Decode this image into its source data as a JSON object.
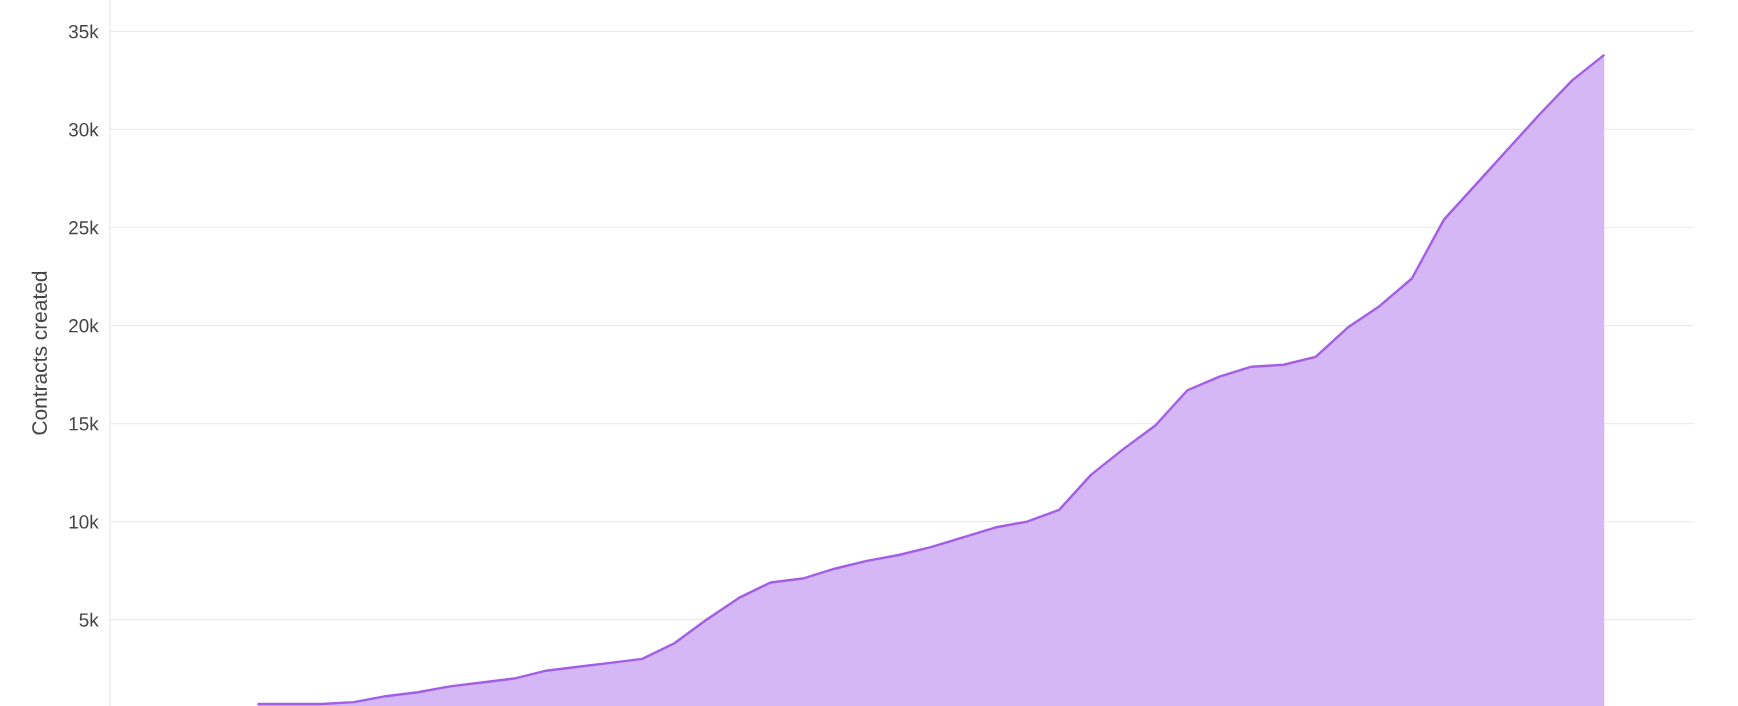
{
  "chart_data": {
    "type": "area",
    "ylabel": "Contracts created",
    "color": "#a35ee8",
    "categories": [
      null,
      null,
      null,
      null,
      null,
      null,
      null,
      null,
      null,
      null,
      null,
      null,
      null,
      null,
      null,
      null,
      null,
      null,
      null,
      null,
      null,
      null,
      null,
      null,
      null,
      null,
      null,
      null,
      null,
      null,
      null,
      null,
      null,
      null,
      null,
      null,
      null,
      null,
      null,
      null,
      null,
      null,
      null
    ],
    "values": [
      700,
      700,
      700,
      800,
      1100,
      1300,
      1600,
      1800,
      2000,
      2400,
      2600,
      2800,
      3000,
      3800,
      5000,
      6100,
      6900,
      7100,
      7600,
      8000,
      8300,
      8700,
      9200,
      9700,
      10000,
      10600,
      12400,
      13700,
      14900,
      16700,
      17400,
      17900,
      18000,
      18400,
      19900,
      21000,
      22400,
      25400,
      27200,
      29000,
      30800,
      32500,
      33800
    ],
    "ylim": [
      600,
      36600
    ],
    "yticks": [
      {
        "value": 5000,
        "label": "5k"
      },
      {
        "value": 10000,
        "label": "10k"
      },
      {
        "value": 15000,
        "label": "15k"
      },
      {
        "value": 20000,
        "label": "20k"
      },
      {
        "value": 25000,
        "label": "25k"
      },
      {
        "value": 30000,
        "label": "30k"
      },
      {
        "value": 35000,
        "label": "35k"
      }
    ],
    "grid": "y",
    "tick_labels": "y"
  }
}
